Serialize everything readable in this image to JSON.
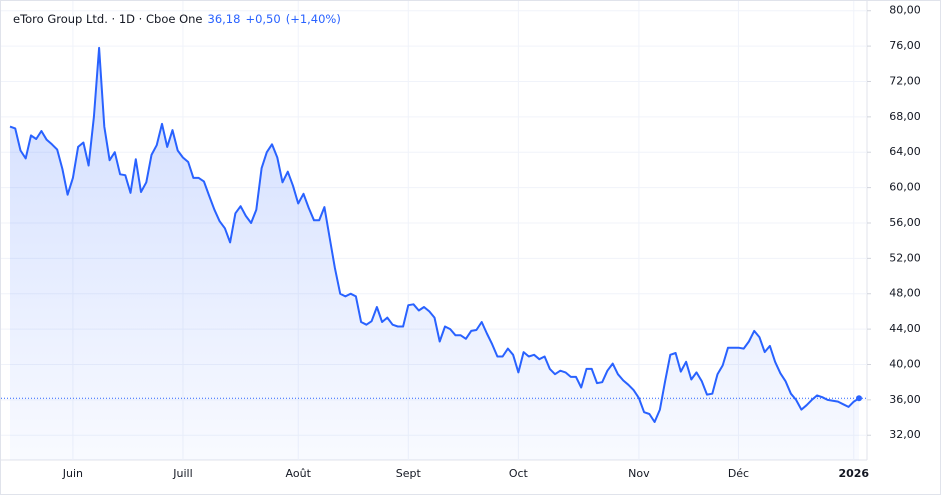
{
  "chart_data": {
    "type": "area",
    "title": "eToro Group Ltd. · 1D · Cboe One",
    "last_price": {
      "value": 36.18,
      "label": "36,18"
    },
    "change": {
      "value": 0.5,
      "label": "+0,50"
    },
    "change_percent": {
      "value": 1.4,
      "label": "(+1,40%)"
    },
    "categories": [
      null,
      null,
      null,
      null,
      null,
      null,
      null,
      null,
      null,
      null,
      null,
      null,
      "Juin",
      null,
      null,
      null,
      null,
      null,
      null,
      null,
      null,
      null,
      null,
      null,
      null,
      null,
      null,
      null,
      null,
      null,
      null,
      null,
      null,
      "Juill",
      null,
      null,
      null,
      null,
      null,
      null,
      null,
      null,
      null,
      null,
      null,
      null,
      null,
      null,
      null,
      null,
      null,
      null,
      null,
      null,
      null,
      "Août",
      null,
      null,
      null,
      null,
      null,
      null,
      null,
      null,
      null,
      null,
      null,
      null,
      null,
      null,
      null,
      null,
      null,
      null,
      null,
      null,
      "Sept",
      null,
      null,
      null,
      null,
      null,
      null,
      null,
      null,
      null,
      null,
      null,
      null,
      null,
      null,
      null,
      null,
      null,
      null,
      null,
      null,
      "Oct",
      null,
      null,
      null,
      null,
      null,
      null,
      null,
      null,
      null,
      null,
      null,
      null,
      null,
      null,
      null,
      null,
      null,
      null,
      null,
      null,
      null,
      null,
      "Nov",
      null,
      null,
      null,
      null,
      null,
      null,
      null,
      null,
      null,
      null,
      null,
      null,
      null,
      null,
      null,
      null,
      null,
      null,
      "Déc",
      null,
      null,
      null,
      null,
      null,
      null,
      null,
      null,
      null,
      null,
      null,
      null,
      null,
      null,
      null,
      null,
      null,
      null,
      null,
      null,
      null,
      "2026",
      null
    ],
    "series": [
      {
        "name": "eToro Group Ltd.",
        "color": "#2962ff",
        "values": [
          66.9,
          66.7,
          64.2,
          63.3,
          65.9,
          65.5,
          66.4,
          65.4,
          64.9,
          64.3,
          62.1,
          59.2,
          61.1,
          64.6,
          65.1,
          62.5,
          68,
          75.8,
          66.9,
          63.1,
          64,
          61.5,
          61.4,
          59.4,
          63.2,
          59.5,
          60.6,
          63.7,
          64.8,
          67.2,
          64.6,
          66.5,
          64.2,
          63.4,
          62.9,
          61.1,
          61.1,
          60.7,
          59.1,
          57.5,
          56.2,
          55.4,
          53.8,
          57.1,
          57.9,
          56.8,
          56,
          57.5,
          62.2,
          64,
          64.9,
          63.4,
          60.6,
          61.8,
          60.2,
          58.2,
          59.3,
          57.7,
          56.3,
          56.3,
          57.8,
          54.3,
          50.9,
          48,
          47.7,
          48,
          47.7,
          44.8,
          44.5,
          44.9,
          46.5,
          44.8,
          45.3,
          44.5,
          44.3,
          44.3,
          46.7,
          46.8,
          46.1,
          46.5,
          46,
          45.3,
          42.6,
          44.3,
          44,
          43.3,
          43.3,
          42.9,
          43.8,
          43.9,
          44.8,
          43.5,
          42.3,
          40.9,
          40.9,
          41.8,
          41.1,
          39.1,
          41.4,
          40.9,
          41.1,
          40.6,
          40.9,
          39.5,
          38.9,
          39.3,
          39.1,
          38.6,
          38.6,
          37.4,
          39.5,
          39.5,
          37.9,
          38,
          39.3,
          40.1,
          38.9,
          38.2,
          37.7,
          37.1,
          36.2,
          34.6,
          34.4,
          33.5,
          34.9,
          38.1,
          41.1,
          41.3,
          39.2,
          40.3,
          38.3,
          39.1,
          38.1,
          36.6,
          36.7,
          38.9,
          39.9,
          41.9,
          41.9,
          41.9,
          41.8,
          42.6,
          43.8,
          43.1,
          41.4,
          42.1,
          40.3,
          39,
          38.1,
          36.7,
          36,
          34.9,
          35.4,
          36,
          36.5,
          36.3,
          36,
          35.9,
          35.8,
          35.5,
          35.2,
          35.8,
          36.18
        ]
      }
    ],
    "ylim": [
      29.2,
      81.1
    ],
    "yticks": [
      {
        "value": 32,
        "label": "32,00"
      },
      {
        "value": 36,
        "label": "36,00"
      },
      {
        "value": 40,
        "label": "40,00"
      },
      {
        "value": 44,
        "label": "44,00"
      },
      {
        "value": 48,
        "label": "48,00"
      },
      {
        "value": 52,
        "label": "52,00"
      },
      {
        "value": 56,
        "label": "56,00"
      },
      {
        "value": 60,
        "label": "60,00"
      },
      {
        "value": 64,
        "label": "64,00"
      },
      {
        "value": 68,
        "label": "68,00"
      },
      {
        "value": 72,
        "label": "72,00"
      },
      {
        "value": 76,
        "label": "76,00"
      },
      {
        "value": 80,
        "label": "80,00"
      }
    ],
    "grid": true
  }
}
